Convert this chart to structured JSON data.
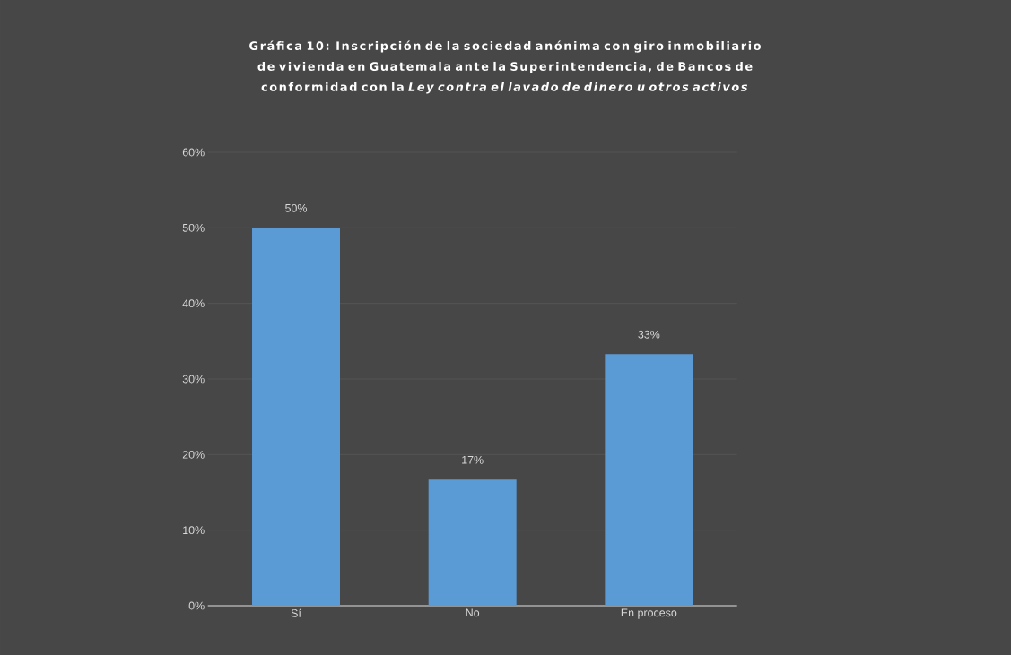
{
  "chart_data": {
    "type": "bar",
    "title": "Gráfica 10: Inscripción de la sociedad anónima con giro inmobiliario de vivienda en Guatemala ante la Superintendencia, de Bancos de conformidad con la *Ley contra el lavado de dinero u otros activos*",
    "categories": [
      "Sí",
      "No",
      "En proceso"
    ],
    "values": [
      50,
      16.7,
      33.3
    ],
    "value_labels": [
      "50%",
      "17%",
      "33%"
    ],
    "color": "#5b9bd5",
    "ylim": [
      0,
      60
    ],
    "yticks": [
      {
        "value": 0,
        "label": "0%"
      },
      {
        "value": 10,
        "label": "10%"
      },
      {
        "value": 20,
        "label": "20%"
      },
      {
        "value": 30,
        "label": "30%"
      },
      {
        "value": 40,
        "label": "40%"
      },
      {
        "value": 50,
        "label": "50%"
      },
      {
        "value": 60,
        "label": "60%"
      }
    ],
    "grid": "y"
  }
}
